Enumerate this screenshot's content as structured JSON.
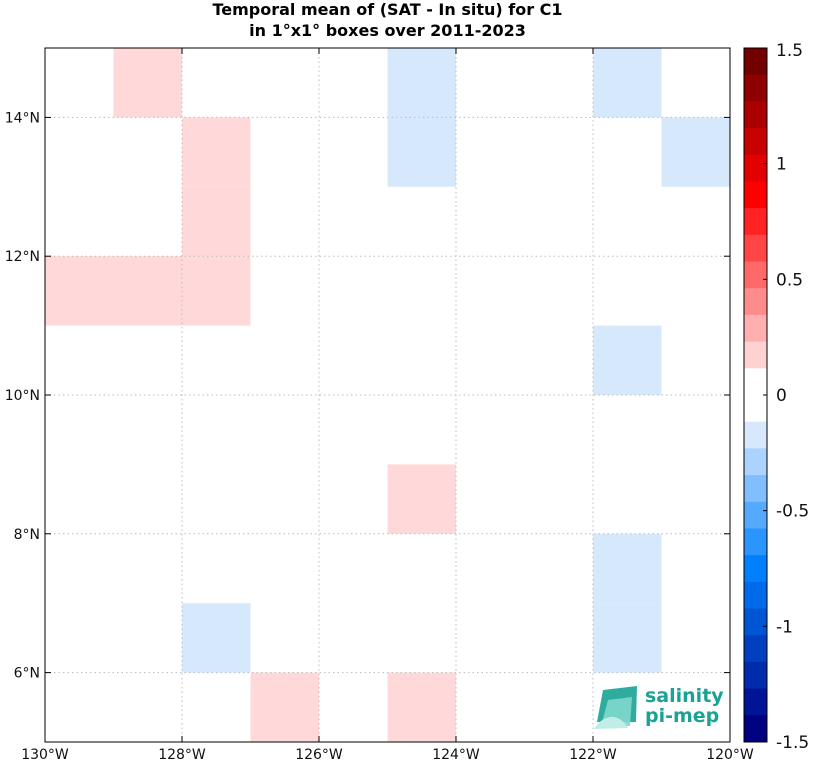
{
  "chart_data": {
    "type": "heatmap",
    "title": "Temporal mean of (SAT - In situ) for C1",
    "subtitle": "in 1°x1° boxes over 2011-2023",
    "xlim": [
      -130,
      -120
    ],
    "ylim": [
      5,
      15
    ],
    "x_ticks": [
      -130,
      -128,
      -126,
      -124,
      -122,
      -120
    ],
    "x_tick_labels": [
      "130°W",
      "128°W",
      "126°W",
      "124°W",
      "122°W",
      "120°W"
    ],
    "y_ticks": [
      6,
      8,
      10,
      12,
      14
    ],
    "y_tick_labels": [
      "6°N",
      "8°N",
      "10°N",
      "12°N",
      "14°N"
    ],
    "grid": true,
    "colorbar": {
      "range": [
        -1.5,
        1.5
      ],
      "levels": 26,
      "ticks": [
        1.5,
        1,
        0.5,
        0,
        -0.5,
        -1,
        -1.5
      ],
      "tick_labels": [
        "1.5",
        "1",
        "0.5",
        "0",
        "-0.5",
        "-1",
        "-1.5"
      ],
      "colormap": "blue-white-red"
    },
    "cells": [
      {
        "lon": -129,
        "lat": 14,
        "value": 0.15
      },
      {
        "lon": -128,
        "lat": 13,
        "value": 0.15
      },
      {
        "lon": -128,
        "lat": 12,
        "value": 0.15
      },
      {
        "lon": -130,
        "lat": 11,
        "value": 0.15
      },
      {
        "lon": -129,
        "lat": 11,
        "value": 0.15
      },
      {
        "lon": -128,
        "lat": 11,
        "value": 0.15
      },
      {
        "lon": -125,
        "lat": 14,
        "value": -0.15
      },
      {
        "lon": -125,
        "lat": 13,
        "value": -0.15
      },
      {
        "lon": -122,
        "lat": 14,
        "value": -0.15
      },
      {
        "lon": -121,
        "lat": 13,
        "value": -0.15
      },
      {
        "lon": -122,
        "lat": 10,
        "value": -0.15
      },
      {
        "lon": -125,
        "lat": 8,
        "value": 0.15
      },
      {
        "lon": -122,
        "lat": 7,
        "value": -0.15
      },
      {
        "lon": -122,
        "lat": 6,
        "value": -0.15
      },
      {
        "lon": -128,
        "lat": 6,
        "value": -0.15
      },
      {
        "lon": -127,
        "lat": 5,
        "value": 0.15
      },
      {
        "lon": -125,
        "lat": 5,
        "value": 0.15
      }
    ]
  },
  "logo": {
    "line1": "salinity",
    "line2": "pi-mep",
    "color": "#1aa394"
  }
}
